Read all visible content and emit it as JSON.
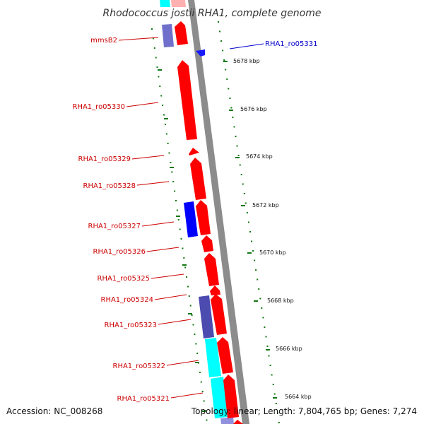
{
  "title": "Rhodococcus jostii RHA1, complete genome",
  "footer": {
    "accession": "Accession: NC_008268",
    "summary": "Topology: linear; Length: 7,804,765 bp; Genes: 7,274"
  },
  "colors": {
    "gene_label": "#cc0000",
    "gene_label_highlight": "#0000cc",
    "forward_gene": "#ff0000",
    "reverse_gene": "#0000ff",
    "purple_feature": "#4b4bb0",
    "cyan_feature": "#00ffff",
    "backbone": "#8c8c8c",
    "scale_dots": "#117711"
  },
  "gene_labels": [
    {
      "text": "mmsB2",
      "highlight": false
    },
    {
      "text": "RHA1_ro05331",
      "highlight": true
    },
    {
      "text": "RHA1_ro05330",
      "highlight": false
    },
    {
      "text": "RHA1_ro05329",
      "highlight": false
    },
    {
      "text": "RHA1_ro05328",
      "highlight": false
    },
    {
      "text": "RHA1_ro05327",
      "highlight": false
    },
    {
      "text": "RHA1_ro05326",
      "highlight": false
    },
    {
      "text": "RHA1_ro05325",
      "highlight": false
    },
    {
      "text": "RHA1_ro05324",
      "highlight": false
    },
    {
      "text": "RHA1_ro05323",
      "highlight": false
    },
    {
      "text": "RHA1_ro05322",
      "highlight": false
    },
    {
      "text": "RHA1_ro05321",
      "highlight": false
    }
  ],
  "kbp_ticks": [
    "5678 kbp",
    "5676 kbp",
    "5674 kbp",
    "5672 kbp",
    "5670 kbp",
    "5668 kbp",
    "5666 kbp",
    "5664 kbp"
  ]
}
